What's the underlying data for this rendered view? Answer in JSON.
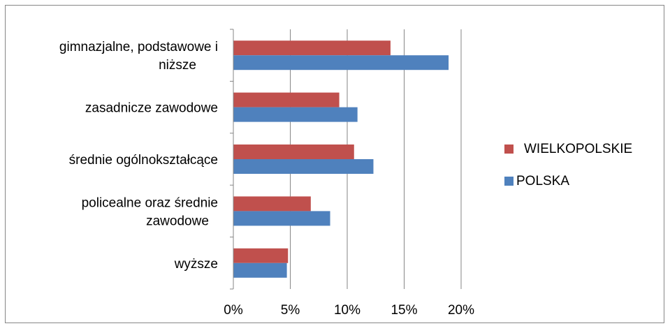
{
  "chart_data": {
    "type": "bar",
    "orientation": "horizontal",
    "categories": [
      [
        "gimnazjalne, podstawowe i",
        "niższe"
      ],
      [
        "zasadnicze zawodowe"
      ],
      [
        "średnie ogólnokształcące"
      ],
      [
        "policealne oraz średnie",
        "zawodowe"
      ],
      [
        "wyższe"
      ]
    ],
    "series": [
      {
        "name": "WIELKOPOLSKIE",
        "color": "#C0504D",
        "values": [
          13.8,
          9.3,
          10.6,
          6.8,
          4.8
        ]
      },
      {
        "name": "POLSKA",
        "color": "#4F81BD",
        "values": [
          18.9,
          10.9,
          12.3,
          8.5,
          4.7
        ]
      }
    ],
    "xlim": [
      0,
      20
    ],
    "x_ticks": [
      0,
      5,
      10,
      15,
      20
    ],
    "x_tick_labels": [
      "0%",
      "5%",
      "10%",
      "15%",
      "20%"
    ],
    "grid": true,
    "legend_position": "right",
    "title": "",
    "xlabel": "",
    "ylabel": ""
  }
}
